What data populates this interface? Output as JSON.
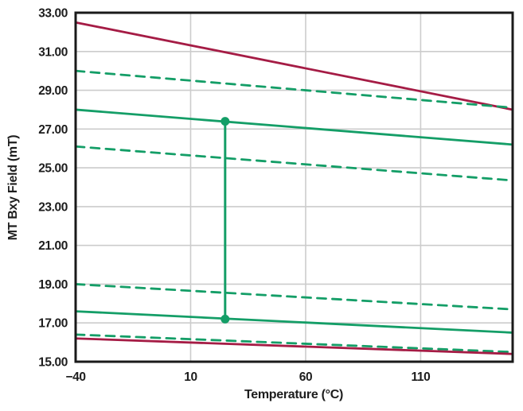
{
  "figure": {
    "background": "#ffffff"
  },
  "chart_data": {
    "type": "line",
    "title": "",
    "xlabel": "Temperature (°C)",
    "ylabel": "MT Bxy Field (mT)",
    "xlim": [
      -40,
      150
    ],
    "ylim": [
      15,
      33
    ],
    "x_ticks": [
      -40,
      10,
      60,
      110
    ],
    "x_tick_labels": [
      "−40",
      "10",
      "60",
      "110"
    ],
    "y_ticks": [
      15,
      17,
      19,
      21,
      23,
      25,
      27,
      29,
      31,
      33
    ],
    "y_tick_labels": [
      "15.00",
      "17.00",
      "19.00",
      "21.00",
      "23.00",
      "25.00",
      "27.00",
      "29.00",
      "31.00",
      "33.00"
    ],
    "grid": true,
    "legend": false,
    "colors": {
      "crimson": "#A51C45",
      "green": "#149E67",
      "grid": "#cccccc",
      "axis": "#1a1a1a",
      "text": "#1d1d1d"
    },
    "series": [
      {
        "name": "upper-limit-red-solid",
        "color": "crimson",
        "style": "solid",
        "x": [
          -40,
          150
        ],
        "y": [
          32.5,
          28.0
        ]
      },
      {
        "name": "upper-green-dashed-high",
        "color": "green",
        "style": "dashed",
        "x": [
          -40,
          150
        ],
        "y": [
          30.0,
          28.1
        ]
      },
      {
        "name": "upper-green-solid",
        "color": "green",
        "style": "solid",
        "x": [
          -40,
          150
        ],
        "y": [
          28.0,
          26.2
        ]
      },
      {
        "name": "upper-green-dashed-low",
        "color": "green",
        "style": "dashed",
        "x": [
          -40,
          150
        ],
        "y": [
          26.1,
          24.35
        ]
      },
      {
        "name": "lower-green-dashed-high",
        "color": "green",
        "style": "dashed",
        "x": [
          -40,
          150
        ],
        "y": [
          19.0,
          17.7
        ]
      },
      {
        "name": "lower-green-solid",
        "color": "green",
        "style": "solid",
        "x": [
          -40,
          150
        ],
        "y": [
          17.6,
          16.5
        ]
      },
      {
        "name": "lower-green-dashed-low",
        "color": "green",
        "style": "dashed",
        "x": [
          -40,
          150
        ],
        "y": [
          16.4,
          15.5
        ]
      },
      {
        "name": "lower-limit-red-solid",
        "color": "crimson",
        "style": "solid",
        "x": [
          -40,
          150
        ],
        "y": [
          16.2,
          15.4
        ]
      }
    ],
    "annotation": {
      "name": "field-range-connector",
      "type": "vertical-line-with-markers",
      "x": 25,
      "y_from": 17.2,
      "y_to": 27.4,
      "color": "green",
      "marker_radius_px": 5.5
    }
  }
}
